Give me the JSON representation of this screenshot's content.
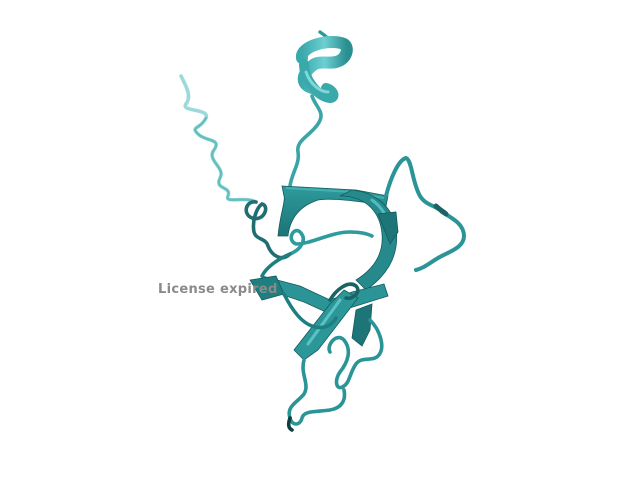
{
  "viewer": {
    "watermark_text": "License expired",
    "background_color": "#ffffff",
    "ribbon_dark_color": "#1f7f80",
    "ribbon_mid_color": "#2c9799",
    "ribbon_light_color": "#5cc3c5",
    "tube_light_color": "#8fd6d6"
  }
}
